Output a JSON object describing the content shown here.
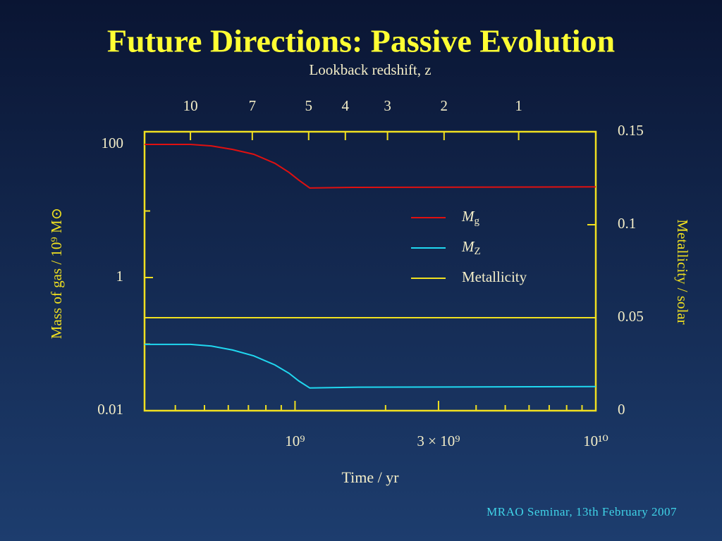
{
  "chart_data": {
    "type": "line",
    "title": "Future Directions: Passive Evolution",
    "x2label": "Lookback redshift, z",
    "xlabel": "Time / yr",
    "ylabel": "Mass of gas / 10⁹ M⊙",
    "y2label": "Metallicity / solar",
    "footer": "MRAO Seminar, 13th February 2007",
    "xscale": "log",
    "yscale": "log",
    "xlim": [
      316000000,
      10000000000
    ],
    "xticks": [
      {
        "value": 1000000000,
        "label": "10⁹"
      },
      {
        "value": 3000000000,
        "label": "3 × 10⁹"
      },
      {
        "value": 10000000000,
        "label": "10¹⁰"
      }
    ],
    "xminor_ticks": [
      400000000,
      500000000,
      600000000,
      700000000,
      800000000,
      900000000,
      2000000000,
      4000000000,
      5000000000,
      6000000000,
      7000000000,
      8000000000,
      9000000000
    ],
    "x2ticks": [
      {
        "value": 449000000,
        "label": "10"
      },
      {
        "value": 721000000,
        "label": "7"
      },
      {
        "value": 1110000000,
        "label": "5"
      },
      {
        "value": 1470000000,
        "label": "4"
      },
      {
        "value": 2030000000,
        "label": "3"
      },
      {
        "value": 3130000000,
        "label": "2"
      },
      {
        "value": 5540000000,
        "label": "1"
      }
    ],
    "ylim": [
      0.01,
      155
    ],
    "yticks": [
      {
        "value": 100,
        "label": "100"
      },
      1,
      0.01
    ],
    "yminor_ticks": [
      10,
      0.1
    ],
    "y2lim": [
      0,
      0.15
    ],
    "y2ticks": [
      0.15,
      0.1,
      0.05,
      0
    ],
    "legend": "right",
    "series": [
      {
        "name": "Mg",
        "subscript": true,
        "color": "#e01010",
        "x": [
          316000000,
          449000000,
          527000000,
          620000000,
          729000000,
          857000000,
          955000000,
          1030000000,
          1120000000,
          1550000000,
          10000000000
        ],
        "values": [
          100,
          100,
          95,
          84,
          71,
          52,
          38,
          29,
          22.1,
          22.6,
          23
        ]
      },
      {
        "name": "MZ",
        "subscript": true,
        "color": "#20d8f0",
        "x": [
          316000000,
          449000000,
          527000000,
          620000000,
          729000000,
          857000000,
          955000000,
          1030000000,
          1120000000,
          1550000000,
          10000000000
        ],
        "values": [
          0.099,
          0.099,
          0.0933,
          0.0815,
          0.0666,
          0.0487,
          0.0365,
          0.0279,
          0.0219,
          0.0225,
          0.023
        ]
      },
      {
        "name": "Metallicity",
        "subscript": false,
        "color": "#f0e020",
        "axis": "y2",
        "x": [
          316000000,
          10000000000
        ],
        "values": [
          0.05,
          0.05
        ]
      }
    ]
  }
}
